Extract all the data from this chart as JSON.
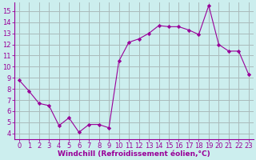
{
  "x": [
    0,
    1,
    2,
    3,
    4,
    5,
    6,
    7,
    8,
    9,
    10,
    11,
    12,
    13,
    14,
    15,
    16,
    17,
    18,
    19,
    20,
    21,
    22,
    23
  ],
  "y": [
    8.8,
    7.8,
    6.7,
    6.5,
    4.7,
    5.4,
    4.1,
    4.8,
    4.8,
    4.5,
    10.5,
    12.2,
    12.5,
    13.0,
    13.7,
    13.6,
    13.6,
    13.3,
    12.9,
    15.5,
    12.0,
    11.4,
    11.4,
    9.3
  ],
  "line_color": "#990099",
  "marker": "D",
  "marker_size": 2.2,
  "bg_color": "#cceeee",
  "grid_color": "#aabbbb",
  "xlabel": "Windchill (Refroidissement éolien,°C)",
  "xlabel_color": "#990099",
  "xlabel_fontsize": 6.5,
  "tick_color": "#990099",
  "tick_fontsize": 6,
  "ylim": [
    3.5,
    15.8
  ],
  "xlim": [
    -0.5,
    23.5
  ],
  "yticks": [
    4,
    5,
    6,
    7,
    8,
    9,
    10,
    11,
    12,
    13,
    14,
    15
  ],
  "xticks": [
    0,
    1,
    2,
    3,
    4,
    5,
    6,
    7,
    8,
    9,
    10,
    11,
    12,
    13,
    14,
    15,
    16,
    17,
    18,
    19,
    20,
    21,
    22,
    23
  ]
}
